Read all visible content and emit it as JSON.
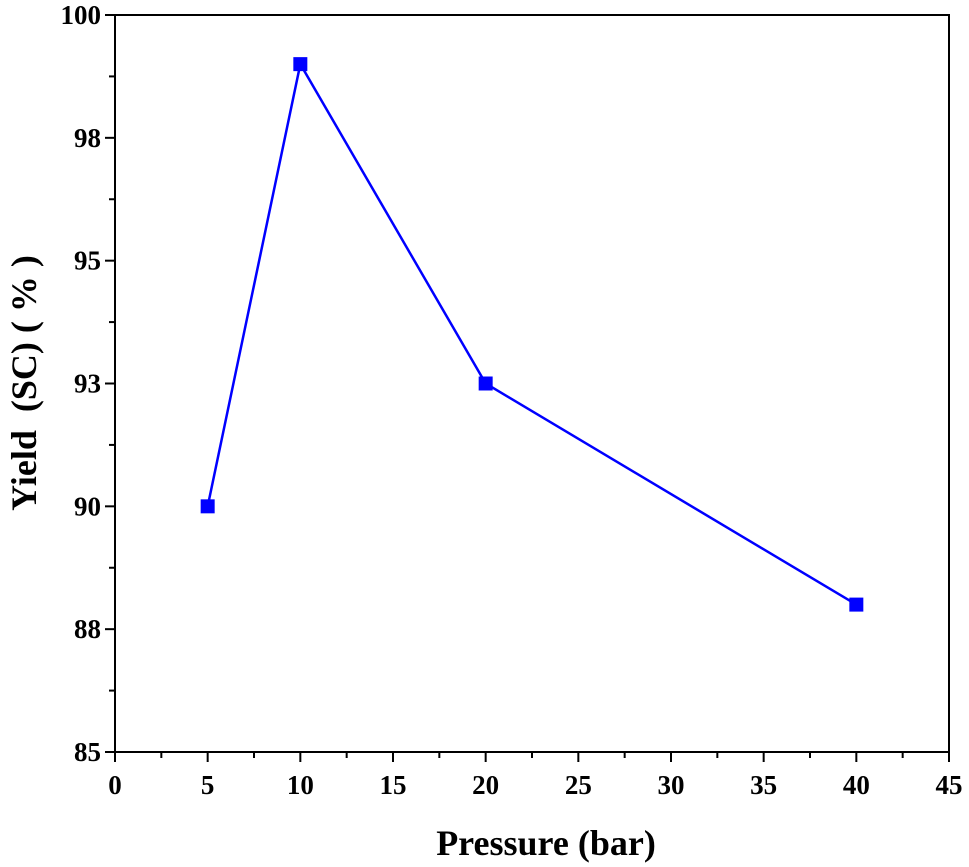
{
  "chart_data": {
    "type": "line",
    "xlabel": "Pressure (bar)",
    "ylabel": "Yield  (SC) ( % )",
    "xlim": [
      0,
      45
    ],
    "ylim": [
      85,
      100
    ],
    "xticks": [
      0,
      5,
      10,
      15,
      20,
      25,
      30,
      35,
      40,
      45
    ],
    "yticks": [
      85,
      88,
      90,
      93,
      95,
      98,
      100
    ],
    "ytick_positions": [
      85,
      87.5,
      90,
      92.5,
      95,
      97.5,
      100
    ],
    "grid": false,
    "series": [
      {
        "x": [
          5,
          10,
          20,
          40
        ],
        "y": [
          90.0,
          99.0,
          92.5,
          88.0
        ],
        "color": "#0000ff",
        "marker": "square"
      }
    ]
  }
}
